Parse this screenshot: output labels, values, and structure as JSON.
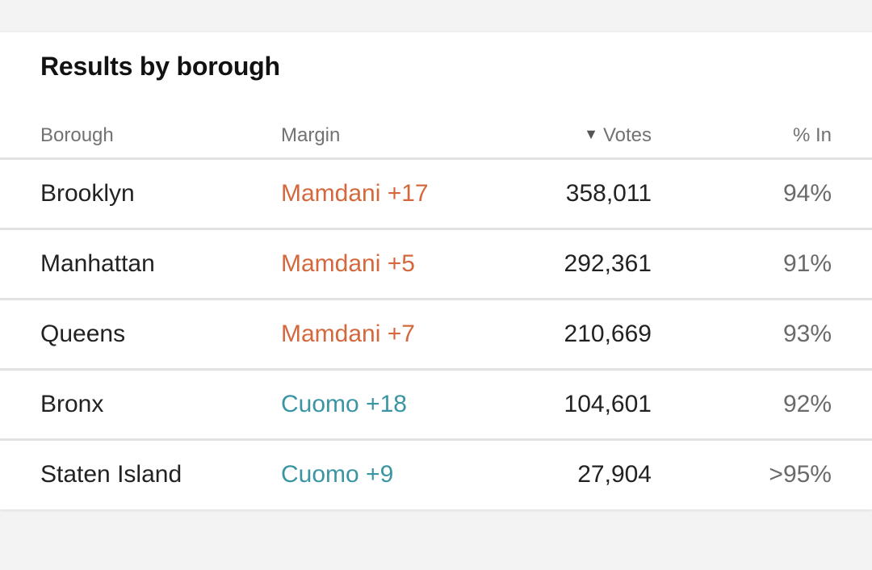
{
  "title": "Results by borough",
  "columns": {
    "borough": "Borough",
    "margin": "Margin",
    "sort_arrow": "▼",
    "votes": "Votes",
    "pct_in": "% In"
  },
  "colors": {
    "mamdani": "#d4683c",
    "cuomo": "#3a95a3"
  },
  "rows": [
    {
      "borough": "Brooklyn",
      "margin": "Mamdani +17",
      "leader": "mamdani",
      "votes": "358,011",
      "pct_in": "94%"
    },
    {
      "borough": "Manhattan",
      "margin": "Mamdani +5",
      "leader": "mamdani",
      "votes": "292,361",
      "pct_in": "91%"
    },
    {
      "borough": "Queens",
      "margin": "Mamdani +7",
      "leader": "mamdani",
      "votes": "210,669",
      "pct_in": "93%"
    },
    {
      "borough": "Bronx",
      "margin": "Cuomo +18",
      "leader": "cuomo",
      "votes": "104,601",
      "pct_in": "92%"
    },
    {
      "borough": "Staten Island",
      "margin": "Cuomo +9",
      "leader": "cuomo",
      "votes": "27,904",
      "pct_in": ">95%"
    }
  ]
}
